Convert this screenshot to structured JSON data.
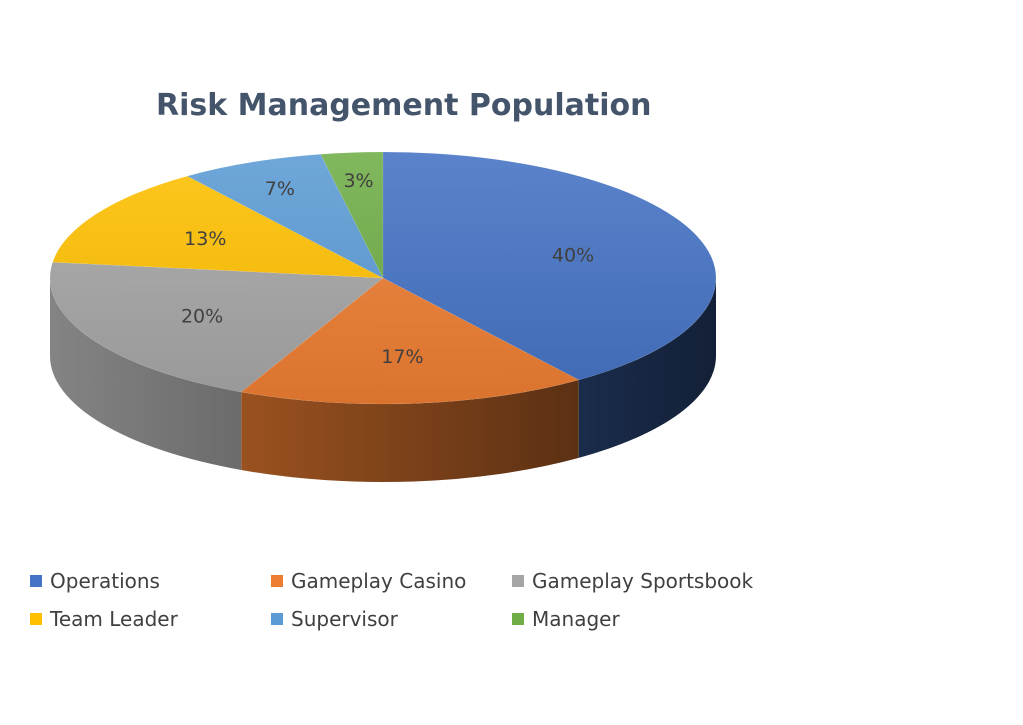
{
  "chart_data": {
    "type": "pie",
    "title": "Risk Management Population",
    "categories": [
      "Operations",
      "Gameplay Casino",
      "Gameplay Sportsbook",
      "Team Leader",
      "Supervisor",
      "Manager"
    ],
    "values": [
      40,
      17,
      20,
      13,
      7,
      3
    ],
    "labels": [
      "40%",
      "17%",
      "20%",
      "13%",
      "7%",
      "3%"
    ],
    "colors": [
      "#4472c4",
      "#ed7d31",
      "#a5a5a5",
      "#ffc000",
      "#5b9bd5",
      "#70ad47"
    ],
    "style": "3d",
    "legend": "bottom"
  }
}
